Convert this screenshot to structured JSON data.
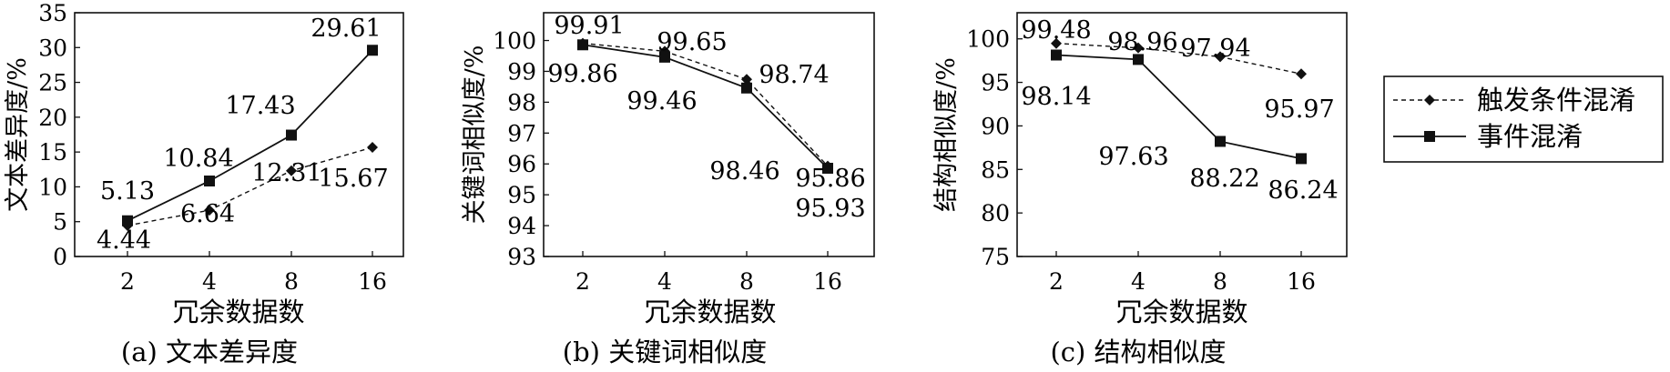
{
  "chart_data": [
    {
      "type": "line",
      "caption": "(a) 文本差异度",
      "xlabel": "冗余数据数",
      "ylabel": "文本差异度/%",
      "categories": [
        "2",
        "4",
        "8",
        "16"
      ],
      "ylim": [
        0,
        35
      ],
      "yticks": [
        0,
        5,
        10,
        15,
        20,
        25,
        30,
        35
      ],
      "series": [
        {
          "name": "触发条件混淆",
          "values": [
            4.44,
            6.64,
            12.31,
            15.67
          ],
          "labels": [
            "4.44",
            "6.64",
            "12.31",
            "15.67"
          ]
        },
        {
          "name": "事件混淆",
          "values": [
            5.13,
            10.84,
            17.43,
            29.61
          ],
          "labels": [
            "5.13",
            "10.84",
            "17.43",
            "29.61"
          ]
        }
      ]
    },
    {
      "type": "line",
      "caption": "(b) 关键词相似度",
      "xlabel": "冗余数据数",
      "ylabel": "关键词相似度/%",
      "categories": [
        "2",
        "4",
        "8",
        "16"
      ],
      "ylim": [
        93,
        100.9
      ],
      "yticks": [
        93,
        94,
        95,
        96,
        97,
        98,
        99,
        100
      ],
      "series": [
        {
          "name": "触发条件混淆",
          "values": [
            99.91,
            99.65,
            98.74,
            95.93
          ],
          "labels": [
            "99.91",
            "99.65",
            "98.74",
            "95.93"
          ]
        },
        {
          "name": "事件混淆",
          "values": [
            99.86,
            99.46,
            98.46,
            95.86
          ],
          "labels": [
            "99.86",
            "99.46",
            "98.46",
            "95.86"
          ]
        }
      ]
    },
    {
      "type": "line",
      "caption": "(c) 结构相似度",
      "xlabel": "冗余数据数",
      "ylabel": "结构相似度/%",
      "categories": [
        "2",
        "4",
        "8",
        "16"
      ],
      "ylim": [
        75,
        103
      ],
      "yticks": [
        75,
        80,
        85,
        90,
        95,
        100
      ],
      "series": [
        {
          "name": "触发条件混淆",
          "values": [
            99.48,
            98.96,
            97.94,
            95.97
          ],
          "labels": [
            "99.48",
            "98.96",
            "97.94",
            "95.97"
          ]
        },
        {
          "name": "事件混淆",
          "values": [
            98.14,
            97.63,
            88.22,
            86.24
          ],
          "labels": [
            "98.14",
            "97.63",
            "88.22",
            "86.24"
          ]
        }
      ]
    }
  ],
  "legend": {
    "placement": "right",
    "items": [
      {
        "label": "触发条件混淆",
        "style": "dashed",
        "marker": "diamond"
      },
      {
        "label": "事件混淆",
        "style": "solid",
        "marker": "square"
      }
    ]
  }
}
